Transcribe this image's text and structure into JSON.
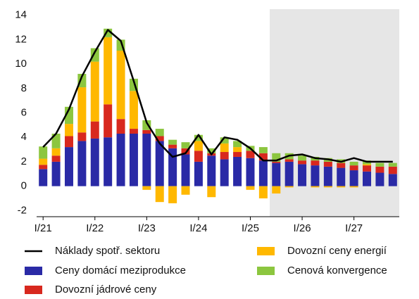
{
  "chart_data": {
    "type": "bar",
    "stacked": true,
    "categories": [
      "I/21",
      null,
      null,
      null,
      "I/22",
      null,
      null,
      null,
      "I/23",
      null,
      null,
      null,
      "I/24",
      null,
      null,
      null,
      "I/25",
      null,
      null,
      null,
      "I/26",
      null,
      null,
      null,
      "I/27",
      null,
      null,
      null
    ],
    "series": [
      {
        "name": "Ceny domácí meziprodukce",
        "color": "#2a2aa6",
        "values": [
          1.4,
          2.0,
          3.2,
          3.7,
          3.9,
          4.0,
          4.3,
          4.3,
          4.3,
          3.7,
          3.1,
          2.6,
          2.0,
          2.5,
          2.2,
          2.4,
          2.3,
          2.1,
          1.9,
          2.0,
          1.8,
          1.7,
          1.6,
          1.5,
          1.3,
          1.2,
          1.1,
          1.0
        ]
      },
      {
        "name": "Dovozní jádrové ceny",
        "color": "#d8281e",
        "values": [
          0.35,
          0.5,
          0.9,
          0.7,
          1.4,
          2.7,
          1.2,
          0.4,
          0.3,
          0.4,
          0.3,
          0.5,
          0.9,
          0.2,
          0.6,
          0.4,
          0.6,
          0.6,
          0.1,
          0.2,
          0.3,
          0.4,
          0.4,
          0.4,
          0.4,
          0.5,
          0.5,
          0.6
        ]
      },
      {
        "name": "Dovozní ceny energií",
        "color": "#ffb800",
        "values": [
          0.5,
          0.6,
          1.0,
          3.7,
          4.9,
          5.5,
          5.6,
          3.1,
          -0.3,
          -1.3,
          -1.4,
          -0.7,
          0.8,
          -0.9,
          0.7,
          0.4,
          -0.3,
          -1.0,
          -0.6,
          -0.1,
          0,
          -0.1,
          -0.1,
          -0.1,
          -0.1,
          0.1,
          0,
          0
        ]
      },
      {
        "name": "Cenová konvergence",
        "color": "#8cc63f",
        "values": [
          1.0,
          1.2,
          1.4,
          1.1,
          1.1,
          0.7,
          0.9,
          1.0,
          0.8,
          0.6,
          0.4,
          0.5,
          0.5,
          0.4,
          0.5,
          0.5,
          0.4,
          0.5,
          0.7,
          0.5,
          0.4,
          0.3,
          0.3,
          0.3,
          0.3,
          0.3,
          0.3,
          0.3
        ]
      },
      {
        "name": "Náklady spotř. sektoru",
        "color": "#000000",
        "type": "line",
        "values": [
          3.2,
          4.3,
          6.3,
          9.0,
          11.0,
          12.8,
          11.9,
          8.6,
          5.2,
          3.5,
          2.4,
          2.7,
          4.2,
          2.6,
          4.0,
          3.8,
          3.1,
          2.1,
          2.1,
          2.5,
          2.6,
          2.3,
          2.2,
          2.0,
          2.3,
          2.0,
          2.0,
          2.0
        ]
      }
    ],
    "ylim": [
      -2.5,
      14.5
    ],
    "yticks": [
      -2,
      0,
      2,
      4,
      6,
      8,
      10,
      12,
      14
    ]
  }
}
